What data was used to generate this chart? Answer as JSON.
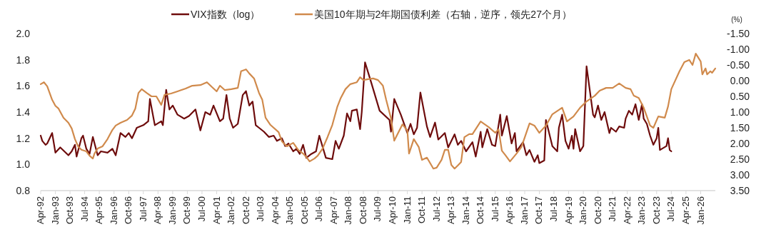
{
  "chart_data": {
    "type": "line",
    "y2label": "(%)",
    "legend": "top",
    "grid": false,
    "line_style": "solid",
    "marker": "none",
    "xlim": [
      "1992-04",
      "2026-10"
    ],
    "xticks": [
      {
        "value": "1992-04",
        "label": "Apr-92"
      },
      {
        "value": "1993-01",
        "label": "Jan-93"
      },
      {
        "value": "1993-10",
        "label": "Oct-93"
      },
      {
        "value": "1994-07",
        "label": "Jul-94"
      },
      {
        "value": "1995-04",
        "label": "Apr-95"
      },
      {
        "value": "1996-01",
        "label": "Jan-96"
      },
      {
        "value": "1996-10",
        "label": "Oct-96"
      },
      {
        "value": "1997-07",
        "label": "Jul-97"
      },
      {
        "value": "1998-04",
        "label": "Apr-98"
      },
      {
        "value": "1999-01",
        "label": "Jan-99"
      },
      {
        "value": "1999-10",
        "label": "Oct-99"
      },
      {
        "value": "2000-07",
        "label": "Jul-00"
      },
      {
        "value": "2001-04",
        "label": "Apr-01"
      },
      {
        "value": "2002-01",
        "label": "Jan-02"
      },
      {
        "value": "2002-10",
        "label": "Oct-02"
      },
      {
        "value": "2003-07",
        "label": "Jul-03"
      },
      {
        "value": "2004-04",
        "label": "Apr-04"
      },
      {
        "value": "2005-01",
        "label": "Jan-05"
      },
      {
        "value": "2005-10",
        "label": "Oct-05"
      },
      {
        "value": "2006-07",
        "label": "Jul-06"
      },
      {
        "value": "2007-04",
        "label": "Apr-07"
      },
      {
        "value": "2008-01",
        "label": "Jan-08"
      },
      {
        "value": "2008-10",
        "label": "Oct-08"
      },
      {
        "value": "2009-07",
        "label": "Jul-09"
      },
      {
        "value": "2010-04",
        "label": "Apr-10"
      },
      {
        "value": "2011-01",
        "label": "Jan-11"
      },
      {
        "value": "2011-10",
        "label": "Oct-11"
      },
      {
        "value": "2012-07",
        "label": "Jul-12"
      },
      {
        "value": "2013-04",
        "label": "Apr-13"
      },
      {
        "value": "2014-01",
        "label": "Jan-14"
      },
      {
        "value": "2014-10",
        "label": "Oct-14"
      },
      {
        "value": "2015-07",
        "label": "Jul-15"
      },
      {
        "value": "2016-04",
        "label": "Apr-16"
      },
      {
        "value": "2017-01",
        "label": "Jan-17"
      },
      {
        "value": "2017-10",
        "label": "Oct-17"
      },
      {
        "value": "2018-07",
        "label": "Jul-18"
      },
      {
        "value": "2019-04",
        "label": "Apr-19"
      },
      {
        "value": "2020-01",
        "label": "Jan-20"
      },
      {
        "value": "2020-10",
        "label": "Oct-20"
      },
      {
        "value": "2021-07",
        "label": "Jul-21"
      },
      {
        "value": "2022-04",
        "label": "Apr-22"
      },
      {
        "value": "2023-01",
        "label": "Jan-23"
      },
      {
        "value": "2023-10",
        "label": "Oct-23"
      },
      {
        "value": "2024-07",
        "label": "Jul-24"
      },
      {
        "value": "2025-04",
        "label": "Apr-25"
      },
      {
        "value": "2026-01",
        "label": "Jan-26"
      }
    ],
    "ylim": [
      0.8,
      2.0
    ],
    "yticks": [
      {
        "value": 0.8,
        "label": "0.8"
      },
      {
        "value": 1,
        "label": "1.0"
      },
      {
        "value": 1.2,
        "label": "1.2"
      },
      {
        "value": 1.4,
        "label": "1.4"
      },
      {
        "value": 1.6,
        "label": "1.6"
      },
      {
        "value": 1.8,
        "label": "1.8"
      },
      {
        "value": 2,
        "label": "2.0"
      }
    ],
    "y2lim": [
      3.5,
      -1.5
    ],
    "y2ticks": [
      {
        "value": -1.5,
        "label": "-1.50"
      },
      {
        "value": -1,
        "label": "-1.00"
      },
      {
        "value": -0.5,
        "label": "-0.50"
      },
      {
        "value": 0,
        "label": "0.00"
      },
      {
        "value": 0.5,
        "label": "0.50"
      },
      {
        "value": 1,
        "label": "1.00"
      },
      {
        "value": 1.5,
        "label": "1.50"
      },
      {
        "value": 2,
        "label": "2.00"
      },
      {
        "value": 2.5,
        "label": "2.50"
      },
      {
        "value": 3,
        "label": "3.00"
      },
      {
        "value": 3.5,
        "label": "3.50"
      }
    ],
    "series": [
      {
        "name": "VIX指数（log）",
        "color": "#6e0c0c",
        "x": [
          "1992-04",
          "1992-05",
          "1992-07",
          "1992-08",
          "1992-11",
          "1993-01",
          "1993-04",
          "1993-09",
          "1993-11",
          "1994-01",
          "1994-02",
          "1994-05",
          "1994-06",
          "1994-08",
          "1994-10",
          "1994-12",
          "1995-03",
          "1995-05",
          "1995-09",
          "1995-12",
          "1996-02",
          "1996-05",
          "1996-08",
          "1996-10",
          "1996-12",
          "1997-03",
          "1997-07",
          "1997-10",
          "1997-11",
          "1998-02",
          "1998-06",
          "1998-07",
          "1998-09",
          "1998-11",
          "1999-01",
          "1999-04",
          "1999-08",
          "1999-11",
          "2000-03",
          "2000-06",
          "2000-09",
          "2000-12",
          "2001-02",
          "2001-06",
          "2001-08",
          "2001-10",
          "2001-12",
          "2002-02",
          "2002-05",
          "2002-08",
          "2002-10",
          "2002-12",
          "2003-02",
          "2003-04",
          "2003-06",
          "2003-09",
          "2003-12",
          "2004-03",
          "2004-05",
          "2004-08",
          "2004-10",
          "2004-12",
          "2005-03",
          "2005-05",
          "2005-07",
          "2005-09",
          "2005-11",
          "2006-02",
          "2006-05",
          "2006-07",
          "2006-11",
          "2007-03",
          "2007-05",
          "2007-07",
          "2007-10",
          "2007-12",
          "2008-02",
          "2008-03",
          "2008-06",
          "2008-08",
          "2008-09",
          "2008-11",
          "2009-03",
          "2009-08",
          "2010-02",
          "2010-03",
          "2010-05",
          "2010-09",
          "2011-01",
          "2011-03",
          "2011-05",
          "2011-07",
          "2011-09",
          "2012-01",
          "2012-03",
          "2012-06",
          "2012-08",
          "2012-12",
          "2013-02",
          "2013-06",
          "2013-08",
          "2013-10",
          "2014-01",
          "2014-05",
          "2014-07",
          "2014-10",
          "2014-11",
          "2015-02",
          "2015-05",
          "2015-07",
          "2015-10",
          "2015-11",
          "2016-02",
          "2016-05",
          "2016-07",
          "2016-08",
          "2016-12",
          "2017-02",
          "2017-04",
          "2017-07",
          "2017-09",
          "2017-10",
          "2018-01",
          "2018-02",
          "2018-06",
          "2018-09",
          "2018-10",
          "2018-12",
          "2019-02",
          "2019-04",
          "2019-06",
          "2019-07",
          "2019-08",
          "2019-11",
          "2020-01",
          "2020-03",
          "2020-07",
          "2020-08",
          "2020-10",
          "2020-12",
          "2021-02",
          "2021-05",
          "2021-06",
          "2021-09",
          "2021-11",
          "2022-02",
          "2022-03",
          "2022-05",
          "2022-07",
          "2022-09",
          "2022-11",
          "2023-01",
          "2023-02",
          "2023-04",
          "2023-06",
          "2023-08",
          "2023-10",
          "2023-11",
          "2023-12",
          "2024-04",
          "2024-05",
          "2024-06",
          "2024-07"
        ],
        "values": [
          1.22,
          1.18,
          1.15,
          1.16,
          1.24,
          1.09,
          1.13,
          1.07,
          1.1,
          1.15,
          1.06,
          1.2,
          1.22,
          1.12,
          1.08,
          1.21,
          1.07,
          1.1,
          1.09,
          1.12,
          1.07,
          1.24,
          1.21,
          1.24,
          1.2,
          1.28,
          1.3,
          1.33,
          1.5,
          1.3,
          1.33,
          1.3,
          1.57,
          1.42,
          1.45,
          1.38,
          1.35,
          1.37,
          1.42,
          1.26,
          1.4,
          1.38,
          1.45,
          1.33,
          1.35,
          1.53,
          1.35,
          1.28,
          1.31,
          1.53,
          1.56,
          1.45,
          1.48,
          1.3,
          1.28,
          1.25,
          1.21,
          1.22,
          1.18,
          1.2,
          1.14,
          1.16,
          1.1,
          1.12,
          1.08,
          1.15,
          1.05,
          1.08,
          1.1,
          1.22,
          1.05,
          1.04,
          1.18,
          1.12,
          1.22,
          1.39,
          1.33,
          1.41,
          1.42,
          1.27,
          1.4,
          1.78,
          1.62,
          1.41,
          1.34,
          1.25,
          1.5,
          1.38,
          1.24,
          1.31,
          1.23,
          1.28,
          1.55,
          1.29,
          1.21,
          1.32,
          1.19,
          1.24,
          1.13,
          1.23,
          1.15,
          1.18,
          1.1,
          1.17,
          1.06,
          1.25,
          1.13,
          1.27,
          1.15,
          1.14,
          1.38,
          1.22,
          1.37,
          1.16,
          1.24,
          1.1,
          1.17,
          1.07,
          1.11,
          1.02,
          1.07,
          1.01,
          1.03,
          1.34,
          1.14,
          1.1,
          1.28,
          1.38,
          1.18,
          1.12,
          1.22,
          1.12,
          1.27,
          1.1,
          1.14,
          1.75,
          1.38,
          1.36,
          1.45,
          1.34,
          1.4,
          1.24,
          1.28,
          1.25,
          1.29,
          1.28,
          1.35,
          1.41,
          1.38,
          1.46,
          1.34,
          1.46,
          1.35,
          1.31,
          1.22,
          1.15,
          1.2,
          1.28,
          1.11,
          1.14,
          1.2,
          1.11,
          1.1
        ]
      },
      {
        "name": "美国10年期与2年期国债利差（右轴，逆序，领先27个月）",
        "color": "#d08a4c",
        "axis": "y2",
        "x": [
          "1992-04",
          "1992-06",
          "1992-08",
          "1992-11",
          "1993-01",
          "1993-03",
          "1993-06",
          "1993-09",
          "1993-11",
          "1994-01",
          "1994-03",
          "1994-05",
          "1994-08",
          "1994-10",
          "1994-12",
          "1995-01",
          "1995-03",
          "1995-06",
          "1995-09",
          "1995-12",
          "1996-02",
          "1996-05",
          "1996-09",
          "1996-12",
          "1997-02",
          "1997-04",
          "1997-06",
          "1997-09",
          "1997-12",
          "1998-03",
          "1998-06",
          "1998-08",
          "1998-12",
          "1999-04",
          "1999-09",
          "2000-01",
          "2000-06",
          "2000-10",
          "2001-01",
          "2001-04",
          "2001-06",
          "2001-09",
          "2002-01",
          "2002-05",
          "2002-07",
          "2002-10",
          "2002-12",
          "2003-03",
          "2003-06",
          "2003-08",
          "2003-10",
          "2004-01",
          "2004-06",
          "2004-08",
          "2004-11",
          "2005-03",
          "2005-06",
          "2005-09",
          "2005-11",
          "2006-01",
          "2006-04",
          "2006-06",
          "2006-09",
          "2006-12",
          "2007-03",
          "2007-06",
          "2007-08",
          "2007-11",
          "2008-02",
          "2008-06",
          "2008-08",
          "2008-10",
          "2009-01",
          "2009-04",
          "2009-07",
          "2009-10",
          "2009-12",
          "2010-03",
          "2010-05",
          "2010-10",
          "2011-01",
          "2011-02",
          "2011-05",
          "2011-08",
          "2011-10",
          "2012-01",
          "2012-05",
          "2012-07",
          "2012-10",
          "2012-12",
          "2013-02",
          "2013-04",
          "2013-06",
          "2013-08",
          "2013-10",
          "2013-12",
          "2014-03",
          "2014-05",
          "2014-10",
          "2015-03",
          "2015-07",
          "2015-09",
          "2015-11",
          "2016-01",
          "2016-04",
          "2016-08",
          "2016-11",
          "2017-04",
          "2017-07",
          "2017-10",
          "2018-02",
          "2018-06",
          "2018-12",
          "2019-03",
          "2019-07",
          "2019-11",
          "2020-03",
          "2020-08",
          "2020-11",
          "2021-03",
          "2021-07",
          "2021-11",
          "2022-03",
          "2022-06",
          "2022-08",
          "2022-11",
          "2023-02",
          "2023-06",
          "2023-08",
          "2023-11",
          "2024-03",
          "2024-05",
          "2024-07",
          "2024-12",
          "2025-03",
          "2025-06",
          "2025-08",
          "2025-10",
          "2026-01",
          "2026-02",
          "2026-04",
          "2026-05",
          "2026-07",
          "2026-08",
          "2026-10"
        ],
        "values": [
          0.11,
          0.05,
          0.18,
          0.61,
          0.8,
          0.89,
          1.18,
          1.34,
          1.52,
          1.86,
          2.09,
          2.2,
          2.25,
          2.39,
          2.48,
          2.32,
          2.16,
          2.09,
          1.86,
          1.57,
          1.43,
          1.34,
          1.25,
          1.11,
          0.89,
          0.39,
          0.27,
          0.39,
          0.5,
          0.5,
          0.77,
          0.45,
          0.41,
          0.34,
          0.25,
          0.16,
          0.14,
          0.05,
          0.2,
          0.34,
          0.16,
          0.3,
          0.27,
          0.23,
          -0.3,
          -0.36,
          -0.23,
          -0.07,
          0.39,
          0.61,
          1.18,
          1.41,
          1.64,
          1.93,
          2.09,
          1.98,
          2.2,
          2.32,
          2.43,
          2.57,
          2.48,
          2.39,
          2.16,
          1.8,
          1.41,
          0.84,
          0.57,
          0.27,
          0.11,
          0.05,
          -0.11,
          -0.02,
          -0.05,
          -0.07,
          -0.02,
          0.16,
          0.61,
          1.2,
          1.91,
          1.39,
          1.59,
          2.32,
          1.86,
          2.11,
          2.52,
          2.45,
          2.8,
          2.77,
          2.52,
          2.2,
          2.2,
          2.68,
          2.8,
          2.7,
          2.59,
          1.8,
          1.7,
          1.7,
          1.3,
          1.48,
          1.66,
          1.55,
          2.23,
          2.36,
          2.57,
          2.32,
          2.11,
          1.36,
          1.43,
          1.66,
          1.43,
          1.07,
          0.86,
          1.3,
          1.14,
          0.86,
          0.66,
          0.48,
          0.32,
          0.23,
          0.23,
          0.09,
          0.23,
          0.27,
          0.48,
          0.55,
          0.86,
          1.43,
          1.5,
          1.14,
          1.18,
          0.82,
          0.27,
          -0.3,
          -0.59,
          -0.66,
          -0.5,
          -0.86,
          -0.61,
          -0.2,
          -0.39,
          -0.2,
          -0.3,
          -0.25,
          -0.39
        ]
      }
    ]
  }
}
